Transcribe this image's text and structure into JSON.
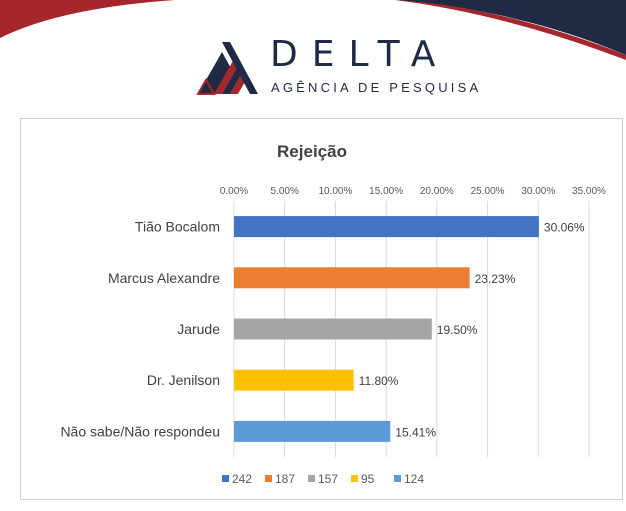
{
  "brand": {
    "name": "DELTA",
    "tagline": "AGÊNCIA DE PESQUISA"
  },
  "colors": {
    "navy": "#1f2a44",
    "red": "#a5262d",
    "grid": "#d9d9d9"
  },
  "chart_data": {
    "type": "bar",
    "orientation": "horizontal",
    "title": "Rejeição",
    "xlim": [
      0,
      35
    ],
    "x_ticks": [
      "0.00%",
      "5.00%",
      "10.00%",
      "15.00%",
      "20.00%",
      "25.00%",
      "30.00%",
      "35.00%"
    ],
    "x_tick_values": [
      0,
      5,
      10,
      15,
      20,
      25,
      30,
      35
    ],
    "x_axis_position": "top",
    "grid": true,
    "categories": [
      "Tião Bocalom",
      "Marcus Alexandre",
      "Jarude",
      "Dr. Jenilson",
      "Não sabe/Não respondeu"
    ],
    "values": [
      30.06,
      23.23,
      19.5,
      11.8,
      15.41
    ],
    "data_labels": [
      "30.06%",
      "23.23%",
      "19.50%",
      "11.80%",
      "15.41%"
    ],
    "bar_colors": [
      "#4472c4",
      "#ed7d31",
      "#a5a5a5",
      "#ffc000",
      "#5b9bd5"
    ],
    "legend": {
      "position": "bottom",
      "entries": [
        "242",
        "187",
        "157",
        "95",
        "124"
      ]
    }
  }
}
